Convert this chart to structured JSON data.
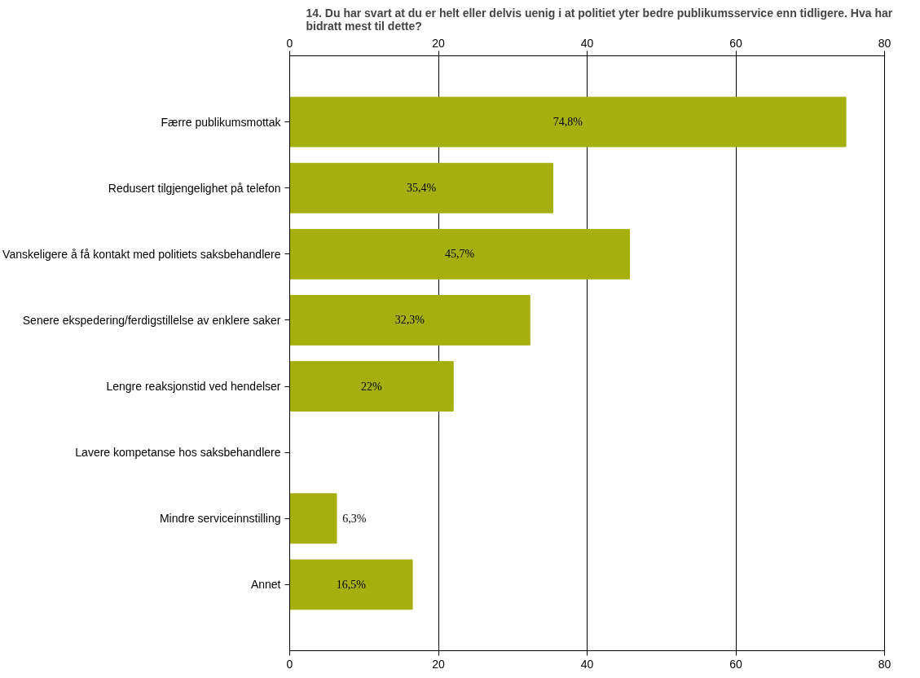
{
  "chart_data": {
    "type": "bar",
    "orientation": "horizontal",
    "title": "14. Du har svart at du er helt eller delvis uenig i at politiet yter bedre publikumsservice enn tidligere. Hva har bidratt mest til dette?",
    "categories": [
      "Færre publikumsmottak",
      "Redusert tilgjengelighet på telefon",
      "Vanskeligere å få kontakt med politiets saksbehandlere",
      "Senere ekspedering/ferdigstillelse av enklere saker",
      "Lengre reaksjonstid ved hendelser",
      "Lavere kompetanse hos saksbehandlere",
      "Mindre serviceinnstilling",
      "Annet"
    ],
    "values": [
      74.8,
      35.4,
      45.7,
      32.3,
      22,
      0,
      6.3,
      16.5
    ],
    "value_labels": [
      "74,8%",
      "35,4%",
      "45,7%",
      "32,3%",
      "22%",
      null,
      "6,3%",
      "16,5%"
    ],
    "color": "#a5b00f",
    "xlim": [
      0,
      80
    ],
    "xticks": [
      0,
      20,
      40,
      60,
      80
    ],
    "x2lim": [
      0,
      80
    ],
    "x2ticks": [
      0,
      20,
      40,
      60,
      80
    ],
    "grid": "x"
  }
}
